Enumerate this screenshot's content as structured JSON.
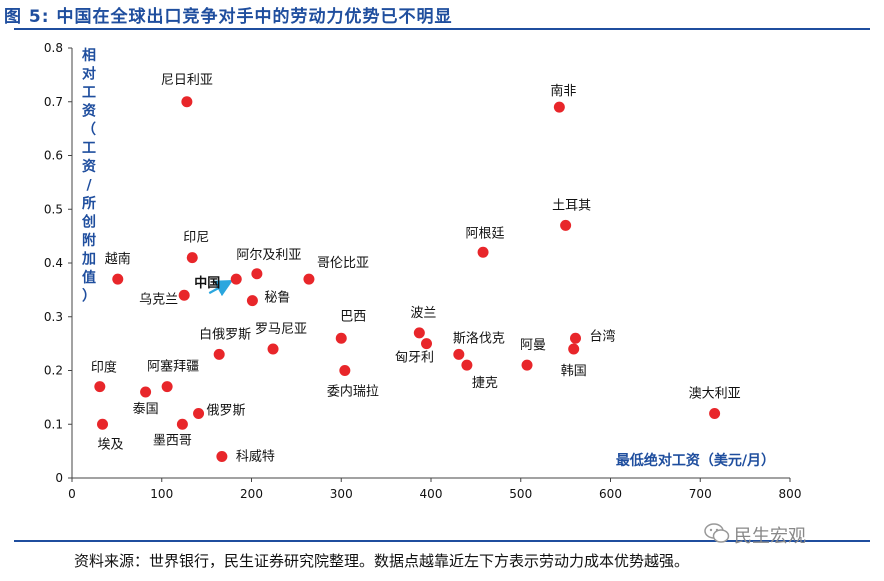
{
  "title": "图 5:   中国在全球出口竞争对手中的劳动力优势已不明显",
  "source": "资料来源：世界银行，民生证券研究院整理。数据点越靠近左下方表示劳动力成本优势越强。",
  "watermark": "民生宏观",
  "colors": {
    "title": "#1f4e9e",
    "point": "#e8262a",
    "axis": "#444444",
    "arrow": "#2aa6de"
  },
  "chart_data": {
    "type": "scatter",
    "title": "",
    "xlabel": "最低绝对工资（美元/月）",
    "ylabel": "相对工资（工资/所创附加值）",
    "xlim": [
      0,
      800
    ],
    "ylim": [
      0,
      0.8
    ],
    "xticks": [
      "0",
      "100",
      "200",
      "300",
      "400",
      "500",
      "600",
      "700",
      "800"
    ],
    "yticks": [
      "0",
      "0.1",
      "0.2",
      "0.3",
      "0.4",
      "0.5",
      "0.6",
      "0.7",
      "0.8"
    ],
    "grid": false,
    "points": [
      {
        "label": "尼日利亚",
        "x": 128,
        "y": 0.7
      },
      {
        "label": "南非",
        "x": 543,
        "y": 0.69
      },
      {
        "label": "土耳其",
        "x": 550,
        "y": 0.47
      },
      {
        "label": "阿根廷",
        "x": 458,
        "y": 0.42
      },
      {
        "label": "越南",
        "x": 51,
        "y": 0.37
      },
      {
        "label": "印尼",
        "x": 134,
        "y": 0.41
      },
      {
        "label": "乌克兰",
        "x": 125,
        "y": 0.34
      },
      {
        "label": "中国",
        "x": 183,
        "y": 0.37
      },
      {
        "label": "阿尔及利亚",
        "x": 206,
        "y": 0.38
      },
      {
        "label": "秘鲁",
        "x": 201,
        "y": 0.33
      },
      {
        "label": "哥伦比亚",
        "x": 264,
        "y": 0.37
      },
      {
        "label": "白俄罗斯",
        "x": 164,
        "y": 0.23
      },
      {
        "label": "罗马尼亚",
        "x": 224,
        "y": 0.24
      },
      {
        "label": "巴西",
        "x": 300,
        "y": 0.26
      },
      {
        "label": "委内瑞拉",
        "x": 304,
        "y": 0.2
      },
      {
        "label": "波兰",
        "x": 387,
        "y": 0.27
      },
      {
        "label": "匈牙利",
        "x": 395,
        "y": 0.25
      },
      {
        "label": "斯洛伐克",
        "x": 431,
        "y": 0.23
      },
      {
        "label": "捷克",
        "x": 440,
        "y": 0.21
      },
      {
        "label": "阿曼",
        "x": 507,
        "y": 0.21
      },
      {
        "label": "台湾",
        "x": 561,
        "y": 0.26
      },
      {
        "label": "韩国",
        "x": 559,
        "y": 0.24
      },
      {
        "label": "印度",
        "x": 31,
        "y": 0.17
      },
      {
        "label": "阿塞拜疆",
        "x": 106,
        "y": 0.17
      },
      {
        "label": "泰国",
        "x": 82,
        "y": 0.16
      },
      {
        "label": "俄罗斯",
        "x": 141,
        "y": 0.12
      },
      {
        "label": "埃及",
        "x": 34,
        "y": 0.1
      },
      {
        "label": "墨西哥",
        "x": 123,
        "y": 0.1
      },
      {
        "label": "科威特",
        "x": 167,
        "y": 0.04
      },
      {
        "label": "澳大利亚",
        "x": 716,
        "y": 0.12
      }
    ]
  }
}
